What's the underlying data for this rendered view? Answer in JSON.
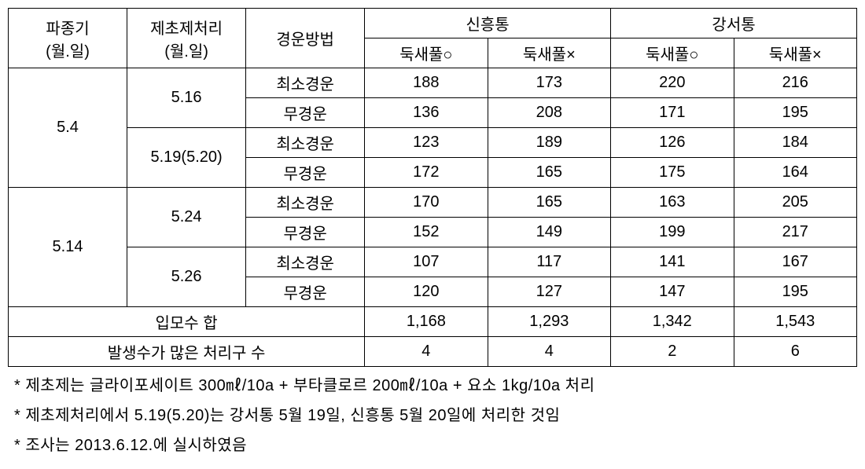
{
  "headers": {
    "col1_line1": "파종기",
    "col1_line2": "(월.일)",
    "col2_line1": "제초제처리",
    "col2_line2": "(월.일)",
    "col3": "경운방법",
    "group1": "신흥통",
    "group2": "강서통",
    "sub1": "둑새풀○",
    "sub2": "둑새풀×",
    "sub3": "둑새풀○",
    "sub4": "둑새풀×"
  },
  "rows": [
    {
      "sowing": "5.4",
      "treatments": [
        {
          "date": "5.16",
          "methods": [
            {
              "name": "최소경운",
              "v": [
                "188",
                "173",
                "220",
                "216"
              ]
            },
            {
              "name": "무경운",
              "v": [
                "136",
                "208",
                "171",
                "195"
              ]
            }
          ]
        },
        {
          "date": "5.19(5.20)",
          "methods": [
            {
              "name": "최소경운",
              "v": [
                "123",
                "189",
                "126",
                "184"
              ]
            },
            {
              "name": "무경운",
              "v": [
                "172",
                "165",
                "175",
                "164"
              ]
            }
          ]
        }
      ]
    },
    {
      "sowing": "5.14",
      "treatments": [
        {
          "date": "5.24",
          "methods": [
            {
              "name": "최소경운",
              "v": [
                "170",
                "165",
                "163",
                "205"
              ]
            },
            {
              "name": "무경운",
              "v": [
                "152",
                "149",
                "199",
                "217"
              ]
            }
          ]
        },
        {
          "date": "5.26",
          "methods": [
            {
              "name": "최소경운",
              "v": [
                "107",
                "117",
                "141",
                "167"
              ]
            },
            {
              "name": "무경운",
              "v": [
                "120",
                "127",
                "147",
                "195"
              ]
            }
          ]
        }
      ]
    }
  ],
  "summary": [
    {
      "label": "입모수 합",
      "v": [
        "1,168",
        "1,293",
        "1,342",
        "1,543"
      ]
    },
    {
      "label": "발생수가 많은 처리구 수",
      "v": [
        "4",
        "4",
        "2",
        "6"
      ]
    }
  ],
  "footnotes": [
    "* 제초제는 글라이포세이트 300㎖/10a + 부타클로르 200㎖/10a + 요소 1kg/10a 처리",
    "* 제초제처리에서 5.19(5.20)는 강서통 5월 19일, 신흥통 5월 20일에 처리한 것임",
    "* 조사는 2013.6.12.에 실시하였음"
  ]
}
